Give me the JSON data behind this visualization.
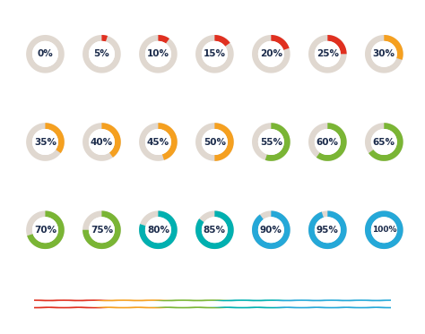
{
  "percentages": [
    0,
    5,
    10,
    15,
    20,
    25,
    30,
    35,
    40,
    45,
    50,
    55,
    60,
    65,
    70,
    75,
    80,
    85,
    90,
    95,
    100
  ],
  "colors": {
    "0": "#e0d8d0",
    "5": "#e03020",
    "10": "#e03020",
    "15": "#e03020",
    "20": "#e03020",
    "25": "#e03020",
    "30": "#f5a020",
    "35": "#f5a020",
    "40": "#f5a020",
    "45": "#f5a020",
    "50": "#f5a020",
    "55": "#7ab535",
    "60": "#7ab535",
    "65": "#7ab535",
    "70": "#7ab535",
    "75": "#7ab535",
    "80": "#00b0b0",
    "85": "#00b0b0",
    "90": "#25a8d8",
    "95": "#25a8d8",
    "100": "#25a8d8"
  },
  "bg_ring_color": "#e0d8d0",
  "text_color": "#1a2a4a",
  "fig_bg": "#ffffff",
  "timeline_colors": [
    "#e03020",
    "#e03020",
    "#e03020",
    "#f5a020",
    "#f5a020",
    "#7ab535",
    "#7ab535",
    "#00b0b0",
    "#00b0b0",
    "#25a8d8",
    "#25a8d8",
    "#25a8d8",
    "#25a8d8"
  ],
  "timeline_line_color": "#999999"
}
